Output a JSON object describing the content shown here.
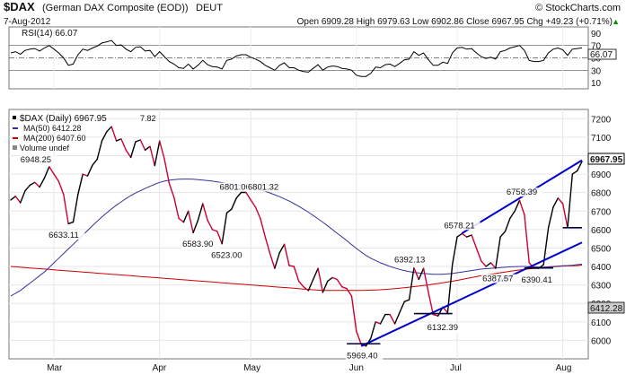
{
  "header": {
    "symbol": "$DAX",
    "name": "(German DAX Composite (EOD))",
    "exchange": "DEUT",
    "brand": "© StockCharts.com",
    "date": "7-Aug-2012",
    "ohlc": "Open 6909.28  High 6979.63  Low 6902.86  Close 6967.95  Chg +49.23 (+0.71%)",
    "ohlc_marker": "▲"
  },
  "rsi": {
    "label": "RSI(14) 66.07",
    "value_tag": "66.07",
    "tick_labels": [
      "90",
      "70",
      "50",
      "30",
      "10"
    ]
  },
  "legend": {
    "main": "$DAX (Daily) 6967.95",
    "ma50": "MA(50) 6412.28",
    "ma200": "MA(200) 6407.60",
    "volume": "Volume undef",
    "main_extra": "7.82"
  },
  "price_tags": {
    "close": "6967.95",
    "ma": "6412.28"
  },
  "colors": {
    "price_up": "#000000",
    "price_down": "#cc0033",
    "ma50": "#333399",
    "ma200": "#cc0000",
    "trend": "#0000cc",
    "rsi_line": "#000000",
    "close_tag_bg": "#ffffff",
    "ma_tag_bg": "#cccccc"
  },
  "chart_data": {
    "type": "line",
    "x_tick_labels": [
      "Mar",
      "Apr",
      "May",
      "Jun",
      "Jul",
      "Aug"
    ],
    "x": [
      "2012-02-17",
      "2012-02-20",
      "2012-02-21",
      "2012-02-22",
      "2012-02-23",
      "2012-02-24",
      "2012-02-27",
      "2012-02-28",
      "2012-02-29",
      "2012-03-01",
      "2012-03-02",
      "2012-03-05",
      "2012-03-06",
      "2012-03-07",
      "2012-03-08",
      "2012-03-09",
      "2012-03-12",
      "2012-03-13",
      "2012-03-14",
      "2012-03-15",
      "2012-03-16",
      "2012-03-19",
      "2012-03-20",
      "2012-03-21",
      "2012-03-22",
      "2012-03-23",
      "2012-03-26",
      "2012-03-27",
      "2012-03-28",
      "2012-03-29",
      "2012-03-30",
      "2012-04-02",
      "2012-04-03",
      "2012-04-04",
      "2012-04-05",
      "2012-04-10",
      "2012-04-11",
      "2012-04-12",
      "2012-04-13",
      "2012-04-16",
      "2012-04-17",
      "2012-04-18",
      "2012-04-19",
      "2012-04-20",
      "2012-04-23",
      "2012-04-24",
      "2012-04-25",
      "2012-04-26",
      "2012-04-27",
      "2012-04-30",
      "2012-05-02",
      "2012-05-03",
      "2012-05-04",
      "2012-05-07",
      "2012-05-08",
      "2012-05-09",
      "2012-05-10",
      "2012-05-11",
      "2012-05-14",
      "2012-05-15",
      "2012-05-16",
      "2012-05-17",
      "2012-05-18",
      "2012-05-21",
      "2012-05-22",
      "2012-05-23",
      "2012-05-24",
      "2012-05-25",
      "2012-05-28",
      "2012-05-29",
      "2012-05-30",
      "2012-05-31",
      "2012-06-01",
      "2012-06-04",
      "2012-06-05",
      "2012-06-06",
      "2012-06-07",
      "2012-06-08",
      "2012-06-11",
      "2012-06-12",
      "2012-06-13",
      "2012-06-14",
      "2012-06-15",
      "2012-06-18",
      "2012-06-19",
      "2012-06-20",
      "2012-06-21",
      "2012-06-22",
      "2012-06-25",
      "2012-06-26",
      "2012-06-27",
      "2012-06-28",
      "2012-06-29",
      "2012-07-02",
      "2012-07-03",
      "2012-07-04",
      "2012-07-05",
      "2012-07-06",
      "2012-07-09",
      "2012-07-10",
      "2012-07-11",
      "2012-07-12",
      "2012-07-13",
      "2012-07-16",
      "2012-07-17",
      "2012-07-18",
      "2012-07-19",
      "2012-07-20",
      "2012-07-23",
      "2012-07-24",
      "2012-07-25",
      "2012-07-26",
      "2012-07-27",
      "2012-07-30",
      "2012-07-31",
      "2012-08-01",
      "2012-08-02",
      "2012-08-03",
      "2012-08-06",
      "2012-08-07"
    ],
    "ylim": [
      5900,
      7250
    ],
    "y_tick_labels": [
      6000,
      6100,
      6200,
      6300,
      6400,
      6500,
      6600,
      6700,
      6800,
      6900,
      7000,
      7100,
      7200
    ],
    "grid": true,
    "series": [
      {
        "name": "$DAX (Daily) 6967.95",
        "values": [
          6760,
          6780,
          6745,
          6810,
          6840,
          6855,
          6830,
          6878,
          6940,
          6900,
          6860,
          6790,
          6632,
          6640,
          6790,
          6900,
          6890,
          6948,
          6980,
          7080,
          7130,
          7157,
          7080,
          7090,
          7030,
          6990,
          7075,
          7085,
          7030,
          7050,
          6946,
          7079,
          6983,
          6850,
          6775,
          6660,
          6640,
          6700,
          6583,
          6650,
          6740,
          6650,
          6600,
          6590,
          6523,
          6690,
          6710,
          6770,
          6801,
          6801,
          6760,
          6720,
          6660,
          6560,
          6470,
          6390,
          6475,
          6520,
          6405,
          6400,
          6320,
          6290,
          6270,
          6330,
          6390,
          6260,
          6320,
          6340,
          6330,
          6290,
          6280,
          6240,
          6050,
          5978,
          5969,
          6010,
          6100,
          6090,
          6140,
          6140,
          6090,
          6150,
          6210,
          6220,
          6392,
          6330,
          6390,
          6260,
          6140,
          6132,
          6180,
          6150,
          6410,
          6560,
          6578,
          6560,
          6570,
          6500,
          6430,
          6400,
          6420,
          6390,
          6560,
          6590,
          6660,
          6700,
          6758,
          6680,
          6420,
          6390,
          6390,
          6410,
          6610,
          6720,
          6770,
          6740,
          6610,
          6900,
          6918,
          6967.95
        ]
      },
      {
        "name": "MA(50) 6412.28",
        "values": [
          6240,
          6255,
          6270,
          6290,
          6310,
          6330,
          6350,
          6370,
          6395,
          6420,
          6445,
          6470,
          6495,
          6520,
          6545,
          6570,
          6595,
          6620,
          6645,
          6668,
          6690,
          6712,
          6732,
          6750,
          6768,
          6784,
          6798,
          6810,
          6822,
          6834,
          6845,
          6855,
          6862,
          6867,
          6870,
          6872,
          6873,
          6873,
          6872,
          6870,
          6868,
          6865,
          6862,
          6858,
          6854,
          6850,
          6846,
          6842,
          6838,
          6834,
          6828,
          6822,
          6815,
          6807,
          6798,
          6788,
          6778,
          6766,
          6754,
          6740,
          6726,
          6710,
          6694,
          6676,
          6658,
          6640,
          6620,
          6600,
          6580,
          6560,
          6540,
          6518,
          6498,
          6478,
          6460,
          6445,
          6432,
          6420,
          6410,
          6400,
          6392,
          6384,
          6378,
          6372,
          6368,
          6365,
          6362,
          6360,
          6358,
          6358,
          6358,
          6360,
          6362,
          6366,
          6370,
          6374,
          6378,
          6382,
          6386,
          6388,
          6390,
          6392,
          6394,
          6396,
          6398,
          6399,
          6400,
          6400,
          6399,
          6398,
          6397,
          6397,
          6398,
          6400,
          6402,
          6404,
          6405,
          6407,
          6410,
          6412.28
        ]
      },
      {
        "name": "MA(200) 6407.60",
        "values": [
          6400,
          6398,
          6396,
          6394,
          6392,
          6390,
          6388,
          6386,
          6384,
          6382,
          6380,
          6378,
          6376,
          6374,
          6372,
          6370,
          6368,
          6366,
          6364,
          6362,
          6360,
          6358,
          6356,
          6354,
          6352,
          6350,
          6348,
          6346,
          6344,
          6342,
          6340,
          6338,
          6336,
          6334,
          6332,
          6330,
          6328,
          6326,
          6324,
          6322,
          6320,
          6318,
          6316,
          6314,
          6312,
          6310,
          6308,
          6306,
          6304,
          6302,
          6300,
          6298,
          6296,
          6294,
          6292,
          6290,
          6288,
          6286,
          6284,
          6282,
          6280,
          6278,
          6276,
          6274,
          6272,
          6270,
          6270,
          6270,
          6270,
          6270,
          6270,
          6270,
          6270,
          6270,
          6271,
          6272,
          6273,
          6274,
          6276,
          6278,
          6280,
          6282,
          6285,
          6288,
          6291,
          6294,
          6297,
          6300,
          6304,
          6308,
          6312,
          6316,
          6320,
          6325,
          6330,
          6335,
          6340,
          6345,
          6350,
          6354,
          6358,
          6362,
          6366,
          6370,
          6374,
          6378,
          6381,
          6384,
          6387,
          6390,
          6392,
          6394,
          6396,
          6398,
          6400,
          6402,
          6403,
          6404,
          6405,
          6407.6
        ]
      }
    ],
    "rsi": {
      "ylim": [
        0,
        100
      ],
      "levels": [
        70,
        50,
        30
      ],
      "values": [
        58,
        60,
        56,
        62,
        64,
        65,
        61,
        66,
        70,
        64,
        58,
        50,
        38,
        40,
        55,
        64,
        62,
        66,
        69,
        74,
        76,
        78,
        70,
        71,
        64,
        60,
        67,
        68,
        61,
        62,
        52,
        60,
        52,
        44,
        40,
        34,
        33,
        40,
        32,
        38,
        46,
        39,
        36,
        35,
        32,
        46,
        48,
        53,
        55,
        55,
        51,
        48,
        44,
        38,
        34,
        30,
        38,
        42,
        34,
        34,
        30,
        28,
        27,
        33,
        39,
        30,
        35,
        37,
        36,
        33,
        32,
        30,
        22,
        20,
        20,
        25,
        35,
        34,
        39,
        40,
        36,
        41,
        47,
        48,
        60,
        54,
        58,
        47,
        38,
        38,
        43,
        41,
        58,
        66,
        67,
        64,
        65,
        58,
        52,
        49,
        51,
        48,
        60,
        62,
        66,
        68,
        70,
        62,
        46,
        44,
        44,
        46,
        58,
        64,
        66,
        63,
        54,
        64,
        65,
        66.07
      ]
    },
    "annotations": [
      {
        "text": "6948.25",
        "date": "2012-02-29",
        "value": 6948.25
      },
      {
        "text": "6633.11",
        "date": "2012-03-06",
        "value": 6633.11
      },
      {
        "text": "6801.00",
        "date": "2012-04-27",
        "value": 6801.0
      },
      {
        "text": "6801.32",
        "date": "2012-04-30",
        "value": 6801.32
      },
      {
        "text": "6583.90",
        "date": "2012-04-13",
        "value": 6583.9
      },
      {
        "text": "6523.00",
        "date": "2012-04-23",
        "value": 6523.0
      },
      {
        "text": "6392.13",
        "date": "2012-06-19",
        "value": 6392.13
      },
      {
        "text": "5969.40",
        "date": "2012-06-04",
        "value": 5969.4
      },
      {
        "text": "6132.39",
        "date": "2012-06-26",
        "value": 6132.39
      },
      {
        "text": "6578.21",
        "date": "2012-07-03",
        "value": 6578.21
      },
      {
        "text": "6387.57",
        "date": "2012-07-10",
        "value": 6387.57
      },
      {
        "text": "6758.39",
        "date": "2012-07-20",
        "value": 6758.39
      },
      {
        "text": "6390.41",
        "date": "2012-07-24",
        "value": 6390.41
      }
    ],
    "trendlines": [
      {
        "from": [
          "2012-06-04",
          5969
        ],
        "to": [
          "2012-08-07",
          6530
        ]
      },
      {
        "from": [
          "2012-07-03",
          6580
        ],
        "to": [
          "2012-08-07",
          6975
        ]
      }
    ],
    "support_lines": [
      {
        "from": [
          "2012-05-30",
          5982
        ],
        "to": [
          "2012-06-08",
          5982
        ]
      },
      {
        "from": [
          "2012-06-19",
          6145
        ],
        "to": [
          "2012-06-29",
          6145
        ]
      },
      {
        "from": [
          "2012-07-20",
          6392
        ],
        "to": [
          "2012-07-30",
          6392
        ]
      },
      {
        "from": [
          "2012-08-01",
          6610
        ],
        "to": [
          "2012-08-07",
          6610
        ]
      }
    ]
  }
}
